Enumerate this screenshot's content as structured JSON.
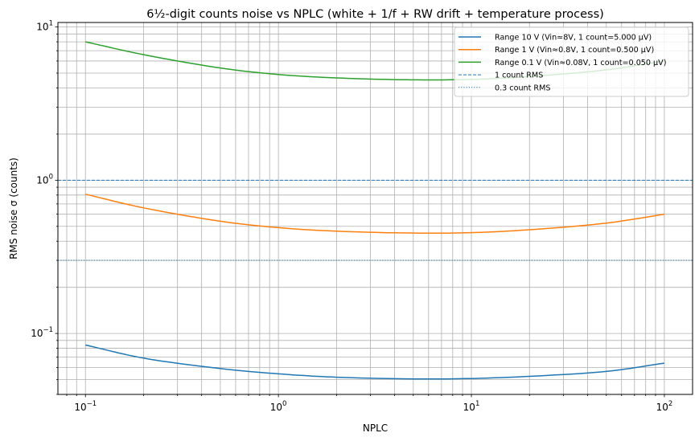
{
  "chart_data": {
    "type": "line",
    "title": "6½-digit counts noise vs NPLC (white + 1/f + RW drift + temperature process)",
    "xlabel": "NPLC",
    "ylabel": "RMS noise σ (counts)",
    "xscale": "log",
    "yscale": "log",
    "xlim": [
      0.072,
      140
    ],
    "ylim": [
      0.04,
      10.7
    ],
    "grid": true,
    "legend_position": "top-right",
    "x_tick_labels": [
      {
        "base": "10",
        "exp": "−1"
      },
      {
        "base": "10",
        "exp": "0"
      },
      {
        "base": "10",
        "exp": "1"
      },
      {
        "base": "10",
        "exp": "2"
      }
    ],
    "y_tick_labels": [
      {
        "base": "10",
        "exp": "−1"
      },
      {
        "base": "10",
        "exp": "0"
      },
      {
        "base": "10",
        "exp": "1"
      }
    ],
    "x": [
      0.1,
      0.2,
      0.5,
      1,
      2,
      5,
      10,
      20,
      50,
      100
    ],
    "series": [
      {
        "name": "Range 10 V (Vin≈8V, 1 count=5.000 µV)",
        "color": "#1f77b4",
        "style": "solid",
        "values": [
          0.084,
          0.069,
          0.059,
          0.0545,
          0.0518,
          0.0505,
          0.0508,
          0.0525,
          0.0565,
          0.064
        ]
      },
      {
        "name": "Range 1 V (Vin≈0.8V, 1 count=0.500 µV)",
        "color": "#ff7f0e",
        "style": "solid",
        "values": [
          0.81,
          0.66,
          0.54,
          0.49,
          0.465,
          0.452,
          0.455,
          0.475,
          0.525,
          0.6
        ]
      },
      {
        "name": "Range 0.1 V (Vin≈0.08V, 1 count=0.050 µV)",
        "color": "#2ca02c",
        "style": "solid",
        "values": [
          8.0,
          6.6,
          5.4,
          4.9,
          4.65,
          4.52,
          4.55,
          4.75,
          5.25,
          6.0
        ]
      }
    ],
    "reference_lines": [
      {
        "name": "1 count RMS",
        "y": 1.0,
        "color": "#1f77b4",
        "style": "dashed"
      },
      {
        "name": "0.3 count RMS",
        "y": 0.3,
        "color": "#1f77b4",
        "style": "dotted"
      }
    ]
  }
}
